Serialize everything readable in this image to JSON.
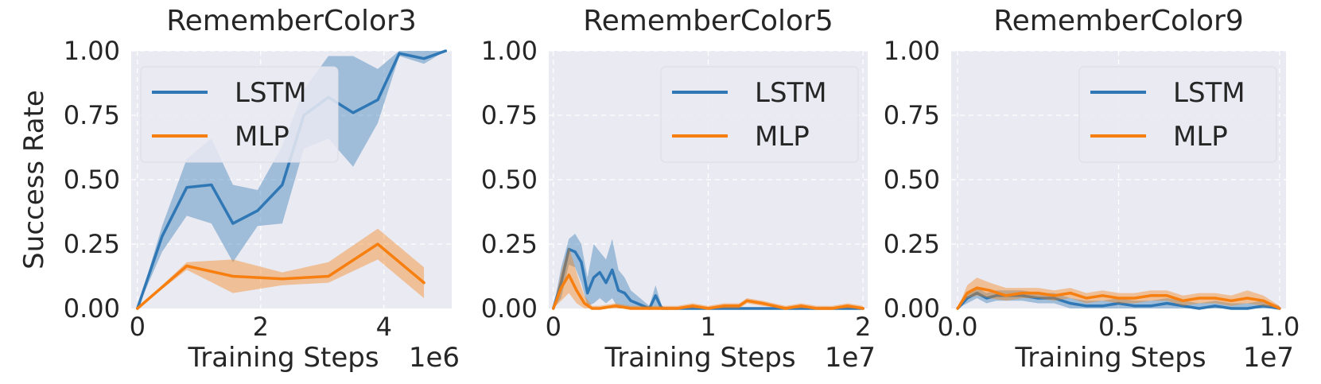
{
  "colors": {
    "LSTM": "#2f78b5",
    "MLP": "#f77f10",
    "panel_bg": "#eaeaf2"
  },
  "chart_data": [
    {
      "type": "line",
      "title": "RememberColor3",
      "xlabel": "Training Steps",
      "ylabel": "Success Rate",
      "x_offset_label": "1e6",
      "xlim": [
        -0.1,
        5.1
      ],
      "ylim": [
        0,
        1
      ],
      "xticks": [
        0,
        2,
        4
      ],
      "xtick_labels": [
        "0",
        "2",
        "4"
      ],
      "yticks": [
        0,
        0.25,
        0.5,
        0.75,
        1
      ],
      "ytick_labels": [
        "0.00",
        "0.25",
        "0.50",
        "0.75",
        "1.00"
      ],
      "legend": "upper-left",
      "grid": true,
      "series": [
        {
          "name": "LSTM",
          "x": [
            0,
            0.4,
            0.8,
            1.2,
            1.55,
            1.95,
            2.35,
            2.7,
            3.1,
            3.5,
            3.9,
            4.25,
            4.65,
            5.0
          ],
          "y": [
            0,
            0.28,
            0.47,
            0.48,
            0.33,
            0.38,
            0.48,
            0.75,
            0.82,
            0.76,
            0.81,
            0.99,
            0.97,
            1.0
          ],
          "lower": [
            0,
            0.22,
            0.36,
            0.33,
            0.18,
            0.32,
            0.33,
            0.62,
            0.66,
            0.55,
            0.72,
            0.98,
            0.95,
            1.0
          ],
          "upper": [
            0,
            0.32,
            0.58,
            0.66,
            0.48,
            0.46,
            0.63,
            0.85,
            0.98,
            0.98,
            0.93,
            1.0,
            1.0,
            1.0
          ]
        },
        {
          "name": "MLP",
          "x": [
            0,
            0.8,
            1.55,
            2.35,
            3.1,
            3.9,
            4.65
          ],
          "y": [
            0,
            0.165,
            0.125,
            0.115,
            0.125,
            0.25,
            0.1
          ],
          "lower": [
            0,
            0.15,
            0.06,
            0.09,
            0.1,
            0.19,
            0.04
          ],
          "upper": [
            0,
            0.18,
            0.19,
            0.14,
            0.18,
            0.31,
            0.16
          ]
        }
      ]
    },
    {
      "type": "line",
      "title": "RememberColor5",
      "xlabel": "Training Steps",
      "ylabel": "",
      "x_offset_label": "1e7",
      "xlim": [
        -0.03,
        2.03
      ],
      "ylim": [
        0,
        1
      ],
      "xticks": [
        0,
        1,
        2
      ],
      "xtick_labels": [
        "0",
        "1",
        "2"
      ],
      "yticks": [
        0,
        0.25,
        0.5,
        0.75,
        1
      ],
      "ytick_labels": [
        "0.00",
        "0.25",
        "0.50",
        "0.75",
        "1.00"
      ],
      "legend": "upper-right",
      "grid": true,
      "series": [
        {
          "name": "LSTM",
          "x": [
            0,
            0.05,
            0.1,
            0.14,
            0.18,
            0.22,
            0.26,
            0.3,
            0.34,
            0.38,
            0.42,
            0.46,
            0.5,
            0.54,
            0.58,
            0.62,
            0.66,
            0.7,
            0.74,
            0.8,
            0.9,
            1.0,
            1.2,
            1.4,
            1.6,
            1.8,
            2.0
          ],
          "y": [
            0,
            0.1,
            0.23,
            0.22,
            0.18,
            0.06,
            0.12,
            0.14,
            0.1,
            0.15,
            0.07,
            0.06,
            0.03,
            0.02,
            0.01,
            0.0,
            0.05,
            0.0,
            0.0,
            0.0,
            0.0,
            0.0,
            0.0,
            0.0,
            0.0,
            0.0,
            0.0
          ],
          "lower": [
            0,
            0.04,
            0.17,
            0.16,
            0.1,
            0.01,
            0.02,
            0.04,
            0.02,
            0.04,
            0.0,
            0.0,
            0.0,
            0.0,
            0.0,
            0.0,
            0.0,
            0.0,
            0.0,
            0.0,
            0.0,
            0.0,
            0.0,
            0.0,
            0.0,
            0.0,
            0.0
          ],
          "upper": [
            0,
            0.16,
            0.27,
            0.29,
            0.25,
            0.12,
            0.25,
            0.22,
            0.19,
            0.27,
            0.15,
            0.12,
            0.07,
            0.05,
            0.03,
            0.01,
            0.09,
            0.01,
            0.0,
            0.0,
            0.0,
            0.0,
            0.0,
            0.0,
            0.0,
            0.0,
            0.0
          ]
        },
        {
          "name": "MLP",
          "x": [
            0,
            0.05,
            0.1,
            0.15,
            0.2,
            0.25,
            0.3,
            0.4,
            0.5,
            0.6,
            0.7,
            0.8,
            0.9,
            1.0,
            1.1,
            1.2,
            1.25,
            1.35,
            1.5,
            1.6,
            1.7,
            1.8,
            1.9,
            2.0
          ],
          "y": [
            0,
            0.08,
            0.13,
            0.07,
            0.02,
            0.0,
            0.0,
            0.01,
            0.0,
            0.0,
            0.0,
            0.0,
            0.01,
            0.0,
            0.01,
            0.01,
            0.03,
            0.02,
            0.0,
            0.01,
            0.0,
            0.0,
            0.01,
            0.0
          ],
          "lower": [
            0,
            0.03,
            0.06,
            0.02,
            0.0,
            0.0,
            0.0,
            0.0,
            0.0,
            0.0,
            0.0,
            0.0,
            0.0,
            0.0,
            0.0,
            0.0,
            0.02,
            0.01,
            0.0,
            0.0,
            0.0,
            0.0,
            0.0,
            0.0
          ],
          "upper": [
            0,
            0.14,
            0.24,
            0.14,
            0.05,
            0.01,
            0.01,
            0.02,
            0.01,
            0.01,
            0.01,
            0.01,
            0.02,
            0.01,
            0.02,
            0.02,
            0.04,
            0.03,
            0.01,
            0.02,
            0.01,
            0.01,
            0.02,
            0.01
          ]
        }
      ]
    },
    {
      "type": "line",
      "title": "RememberColor9",
      "xlabel": "Training Steps",
      "ylabel": "",
      "x_offset_label": "1e7",
      "xlim": [
        -0.02,
        1.02
      ],
      "ylim": [
        0,
        1
      ],
      "xticks": [
        0,
        0.5,
        1
      ],
      "xtick_labels": [
        "0.0",
        "0.5",
        "1.0"
      ],
      "yticks": [
        0,
        0.25,
        0.5,
        0.75,
        1
      ],
      "ytick_labels": [
        "0.00",
        "0.25",
        "0.50",
        "0.75",
        "1.00"
      ],
      "legend": "upper-right",
      "grid": true,
      "series": [
        {
          "name": "LSTM",
          "x": [
            0,
            0.03,
            0.06,
            0.09,
            0.12,
            0.15,
            0.2,
            0.25,
            0.3,
            0.35,
            0.4,
            0.45,
            0.5,
            0.55,
            0.6,
            0.65,
            0.7,
            0.75,
            0.8,
            0.85,
            0.9,
            0.95,
            1.0
          ],
          "y": [
            0,
            0.04,
            0.06,
            0.04,
            0.05,
            0.05,
            0.05,
            0.04,
            0.04,
            0.02,
            0.01,
            0.01,
            0.02,
            0.01,
            0.01,
            0.02,
            0.01,
            0.0,
            0.01,
            0.0,
            0.0,
            0.01,
            0.0
          ],
          "lower": [
            0,
            0.02,
            0.04,
            0.02,
            0.03,
            0.03,
            0.03,
            0.02,
            0.02,
            0.0,
            0.0,
            0.0,
            0.0,
            0.0,
            0.0,
            0.0,
            0.0,
            0.0,
            0.0,
            0.0,
            0.0,
            0.0,
            0.0
          ],
          "upper": [
            0,
            0.06,
            0.08,
            0.06,
            0.07,
            0.07,
            0.07,
            0.06,
            0.06,
            0.04,
            0.03,
            0.03,
            0.04,
            0.03,
            0.03,
            0.04,
            0.03,
            0.02,
            0.03,
            0.02,
            0.02,
            0.03,
            0.01
          ]
        },
        {
          "name": "MLP",
          "x": [
            0,
            0.03,
            0.06,
            0.1,
            0.15,
            0.2,
            0.25,
            0.3,
            0.35,
            0.4,
            0.45,
            0.5,
            0.55,
            0.6,
            0.65,
            0.7,
            0.75,
            0.8,
            0.85,
            0.9,
            0.95,
            1.0
          ],
          "y": [
            0,
            0.06,
            0.08,
            0.07,
            0.05,
            0.06,
            0.06,
            0.05,
            0.06,
            0.04,
            0.05,
            0.04,
            0.04,
            0.05,
            0.05,
            0.03,
            0.04,
            0.04,
            0.03,
            0.04,
            0.03,
            0.0
          ],
          "lower": [
            0,
            0.04,
            0.05,
            0.04,
            0.03,
            0.04,
            0.04,
            0.03,
            0.04,
            0.02,
            0.03,
            0.02,
            0.02,
            0.03,
            0.03,
            0.01,
            0.02,
            0.02,
            0.01,
            0.02,
            0.01,
            0.0
          ],
          "upper": [
            0,
            0.09,
            0.12,
            0.1,
            0.08,
            0.08,
            0.08,
            0.07,
            0.08,
            0.06,
            0.07,
            0.06,
            0.06,
            0.07,
            0.07,
            0.05,
            0.06,
            0.06,
            0.05,
            0.07,
            0.05,
            0.01
          ]
        }
      ]
    }
  ]
}
